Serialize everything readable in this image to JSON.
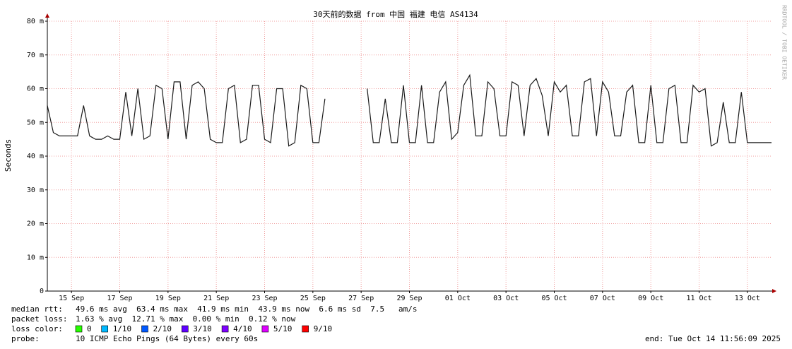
{
  "chart_data": {
    "type": "line",
    "title": "30天前的数据 from 中国 福建 电信 AS4134",
    "y_label": "Seconds",
    "side_note": "RRDTOOL / TOBI OETIKER",
    "x": [
      0,
      0.25,
      0.5,
      0.75,
      1,
      1.25,
      1.5,
      1.75,
      2,
      2.25,
      2.5,
      2.75,
      3,
      3.25,
      3.5,
      3.75,
      4,
      4.25,
      4.5,
      4.75,
      5,
      5.25,
      5.5,
      5.75,
      6,
      6.25,
      6.5,
      6.75,
      7,
      7.25,
      7.5,
      7.75,
      8,
      8.25,
      8.5,
      8.75,
      9,
      9.25,
      9.5,
      9.75,
      10,
      10.25,
      10.5,
      10.75,
      11,
      11.25,
      11.5,
      11.75,
      12,
      12.25,
      12.5,
      12.75,
      13,
      13.25,
      13.5,
      13.75,
      14,
      14.25,
      14.5,
      14.75,
      15,
      15.25,
      15.5,
      15.75,
      16,
      16.25,
      16.5,
      16.75,
      17,
      17.25,
      17.5,
      17.75,
      18,
      18.25,
      18.5,
      18.75,
      19,
      19.25,
      19.5,
      19.75,
      20,
      20.25,
      20.5,
      20.75,
      21,
      21.25,
      21.5,
      21.75,
      22,
      22.25,
      22.5,
      22.75,
      23,
      23.25,
      23.5,
      23.75,
      24,
      24.25,
      24.5,
      24.75,
      25,
      25.25,
      25.5,
      25.75,
      26,
      26.25,
      26.5,
      26.75,
      27,
      27.25,
      27.5,
      27.75,
      28,
      28.25,
      28.5,
      28.75,
      29,
      29.25,
      29.5,
      29.75,
      30
    ],
    "series": [
      {
        "name": "median rtt",
        "color": "#1a1a1a",
        "values": [
          55,
          47,
          46,
          46,
          46,
          46,
          55,
          46,
          45,
          45,
          46,
          45,
          45,
          59,
          46,
          60,
          45,
          46,
          61,
          60,
          45,
          62,
          62,
          45,
          61,
          62,
          60,
          45,
          44,
          44,
          60,
          61,
          44,
          45,
          61,
          61,
          45,
          44,
          60,
          60,
          43,
          44,
          61,
          60,
          44,
          44,
          57,
          null,
          null,
          null,
          null,
          null,
          null,
          60,
          44,
          44,
          57,
          44,
          44,
          61,
          44,
          44,
          61,
          44,
          44,
          59,
          62,
          45,
          47,
          61,
          64,
          46,
          46,
          62,
          60,
          46,
          46,
          62,
          61,
          46,
          61,
          63,
          58,
          46,
          62,
          59,
          61,
          46,
          46,
          62,
          63,
          46,
          62,
          59,
          46,
          46,
          59,
          61,
          44,
          44,
          61,
          44,
          44,
          60,
          61,
          44,
          44,
          61,
          59,
          60,
          43,
          44,
          56,
          44,
          44,
          59,
          44,
          44,
          44,
          44,
          44
        ]
      }
    ],
    "xlim": [
      0,
      30
    ],
    "xticks": [
      {
        "value": 1,
        "label": "15 Sep"
      },
      {
        "value": 3,
        "label": "17 Sep"
      },
      {
        "value": 5,
        "label": "19 Sep"
      },
      {
        "value": 7,
        "label": "21 Sep"
      },
      {
        "value": 9,
        "label": "23 Sep"
      },
      {
        "value": 11,
        "label": "25 Sep"
      },
      {
        "value": 13,
        "label": "27 Sep"
      },
      {
        "value": 15,
        "label": "29 Sep"
      },
      {
        "value": 17,
        "label": "01 Oct"
      },
      {
        "value": 19,
        "label": "03 Oct"
      },
      {
        "value": 21,
        "label": "05 Oct"
      },
      {
        "value": 23,
        "label": "07 Oct"
      },
      {
        "value": 25,
        "label": "09 Oct"
      },
      {
        "value": 27,
        "label": "11 Oct"
      },
      {
        "value": 29,
        "label": "13 Oct"
      }
    ],
    "ylim": [
      0,
      80
    ],
    "yticks": [
      0,
      {
        "value": 10,
        "label": "10 m"
      },
      {
        "value": 20,
        "label": "20 m"
      },
      {
        "value": 30,
        "label": "30 m"
      },
      {
        "value": 40,
        "label": "40 m"
      },
      {
        "value": 50,
        "label": "50 m"
      },
      {
        "value": 60,
        "label": "60 m"
      },
      {
        "value": 70,
        "label": "70 m"
      },
      {
        "value": 80,
        "label": "80 m"
      }
    ],
    "grid": true,
    "stats": {
      "rtt_label": "median rtt:",
      "rtt": "49.6 ms avg  63.4 ms max  41.9 ms min  43.9 ms now  6.6 ms sd  7.5   am/s",
      "loss_label": "packet loss:",
      "loss": "1.63 % avg  12.71 % max  0.00 % min  0.12 % now",
      "color_label": "loss color:",
      "probe_label": "probe:",
      "probe": "10 ICMP Echo Pings (64 Bytes) every 60s",
      "end": "end: Tue Oct 14 11:56:09 2025"
    },
    "loss_legend": [
      {
        "name": "0",
        "color": "#26ff00"
      },
      {
        "name": "1/10",
        "color": "#00b8ff"
      },
      {
        "name": "2/10",
        "color": "#0059ff"
      },
      {
        "name": "3/10",
        "color": "#5e00ff"
      },
      {
        "name": "4/10",
        "color": "#7e00ff"
      },
      {
        "name": "5/10",
        "color": "#dd00ff"
      },
      {
        "name": "9/10",
        "color": "#ff0000"
      }
    ]
  }
}
